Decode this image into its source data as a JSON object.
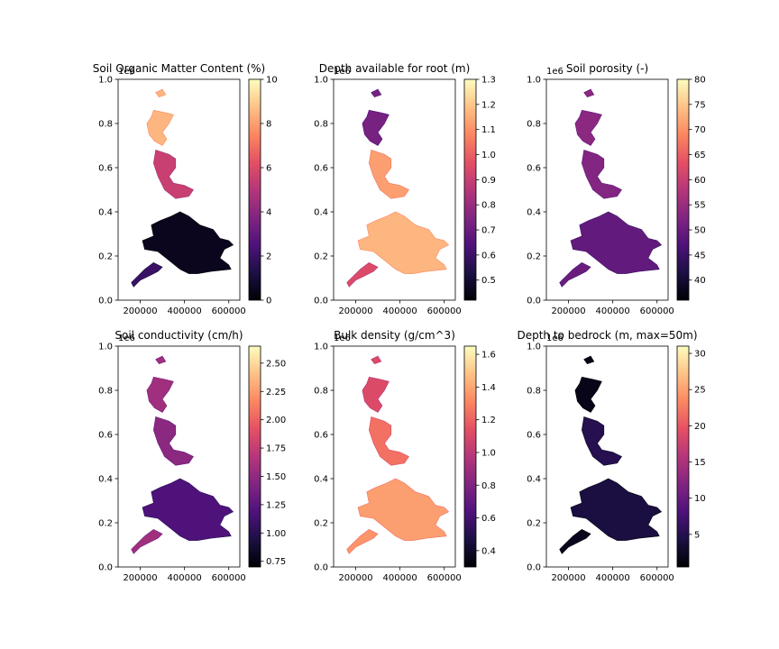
{
  "figure": {
    "background": "#ffffff",
    "colormap": "magma",
    "colormap_stops": [
      "#000004",
      "#1c1044",
      "#4f127b",
      "#812581",
      "#b5367a",
      "#e55064",
      "#fb8761",
      "#fec287",
      "#fcfdbf"
    ]
  },
  "chart_data": [
    {
      "type": "heatmap",
      "title": "Soil Organic Matter Content (%)",
      "x_ticks": [
        "200000",
        "400000",
        "600000"
      ],
      "y_ticks": [
        "0.0",
        "0.2",
        "0.4",
        "0.6",
        "0.8",
        "1.0"
      ],
      "y_offset_label": "1e6",
      "xlim": [
        100000,
        650000
      ],
      "ylim": [
        0,
        1000000
      ],
      "colorbar": {
        "min": 0,
        "max": 10,
        "ticks": [
          "0",
          "2",
          "4",
          "6",
          "8",
          "10"
        ]
      },
      "region_levels": {
        "north": 0.85,
        "central": 0.55,
        "south": 0.05,
        "southwest": 0.2
      }
    },
    {
      "type": "heatmap",
      "title": "Depth available for root (m)",
      "x_ticks": [
        "200000",
        "400000",
        "600000"
      ],
      "y_ticks": [
        "0.0",
        "0.2",
        "0.4",
        "0.6",
        "0.8",
        "1.0"
      ],
      "y_offset_label": "1e6",
      "xlim": [
        100000,
        650000
      ],
      "ylim": [
        0,
        1000000
      ],
      "colorbar": {
        "min": 0.42,
        "max": 1.3,
        "ticks": [
          "0.5",
          "0.6",
          "0.7",
          "0.8",
          "0.9",
          "1.0",
          "1.1",
          "1.2",
          "1.3"
        ]
      },
      "region_levels": {
        "north": 0.35,
        "central": 0.8,
        "south": 0.85,
        "southwest": 0.6
      }
    },
    {
      "type": "heatmap",
      "title": "Soil porosity (-)",
      "x_ticks": [
        "200000",
        "400000",
        "600000"
      ],
      "y_ticks": [
        "0.0",
        "0.2",
        "0.4",
        "0.6",
        "0.8",
        "1.0"
      ],
      "y_offset_label": "1e6",
      "xlim": [
        100000,
        650000
      ],
      "ylim": [
        0,
        1000000
      ],
      "colorbar": {
        "min": 36,
        "max": 80,
        "ticks": [
          "40",
          "45",
          "50",
          "55",
          "60",
          "65",
          "70",
          "75",
          "80"
        ]
      },
      "region_levels": {
        "north": 0.4,
        "central": 0.38,
        "south": 0.3,
        "southwest": 0.32
      }
    },
    {
      "type": "heatmap",
      "title": "Soil conductivity (cm/h)",
      "x_ticks": [
        "200000",
        "400000",
        "600000"
      ],
      "y_ticks": [
        "0.0",
        "0.2",
        "0.4",
        "0.6",
        "0.8",
        "1.0"
      ],
      "y_offset_label": "1e6",
      "xlim": [
        100000,
        650000
      ],
      "ylim": [
        0,
        1000000
      ],
      "colorbar": {
        "min": 0.7,
        "max": 2.65,
        "ticks": [
          "0.75",
          "1.00",
          "1.25",
          "1.50",
          "1.75",
          "2.00",
          "2.25",
          "2.50"
        ]
      },
      "region_levels": {
        "north": 0.45,
        "central": 0.4,
        "south": 0.25,
        "southwest": 0.45
      }
    },
    {
      "type": "heatmap",
      "title": "Bulk density (g/cm^3)",
      "x_ticks": [
        "200000",
        "400000",
        "600000"
      ],
      "y_ticks": [
        "0.0",
        "0.2",
        "0.4",
        "0.6",
        "0.8",
        "1.0"
      ],
      "y_offset_label": "1e6",
      "xlim": [
        100000,
        650000
      ],
      "ylim": [
        0,
        1000000
      ],
      "colorbar": {
        "min": 0.3,
        "max": 1.65,
        "ticks": [
          "0.4",
          "0.6",
          "0.8",
          "1.0",
          "1.2",
          "1.4",
          "1.6"
        ]
      },
      "region_levels": {
        "north": 0.6,
        "central": 0.7,
        "south": 0.8,
        "southwest": 0.78
      }
    },
    {
      "type": "heatmap",
      "title": "Depth to bedrock (m, max=50m)",
      "x_ticks": [
        "200000",
        "400000",
        "600000"
      ],
      "y_ticks": [
        "0.0",
        "0.2",
        "0.4",
        "0.6",
        "0.8",
        "1.0"
      ],
      "y_offset_label": "1e6",
      "xlim": [
        100000,
        650000
      ],
      "ylim": [
        0,
        1000000
      ],
      "colorbar": {
        "min": 0.5,
        "max": 31,
        "ticks": [
          "5",
          "10",
          "15",
          "20",
          "25",
          "30"
        ]
      },
      "region_levels": {
        "north": 0.04,
        "central": 0.15,
        "south": 0.12,
        "southwest": 0.05
      }
    }
  ]
}
